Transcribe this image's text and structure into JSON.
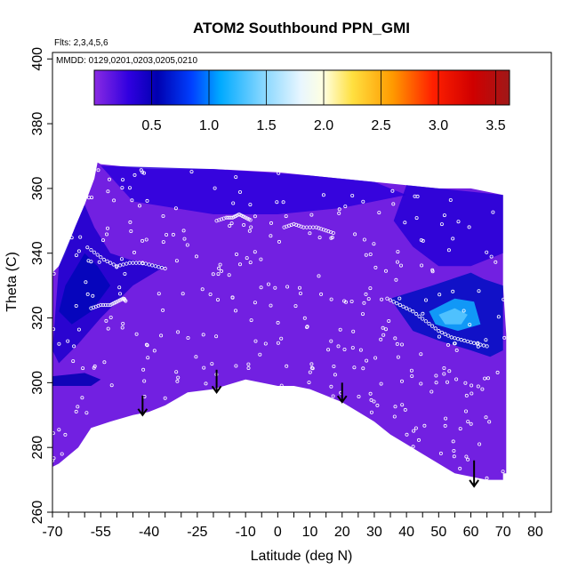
{
  "chart_data": {
    "type": "heatmap",
    "title": "ATOM2 Southbound PPN_GMI",
    "subtitle_flights": "Flts: 2,3,4,5,6",
    "subtitle_dates": "MMDD: 0129,0201,0203,0205,0210",
    "xlabel": "Latitude (deg N)",
    "ylabel": "Theta (C)",
    "xlim": [
      -70,
      85
    ],
    "ylim": [
      260,
      402
    ],
    "x_ticks": [
      -70,
      -55,
      -40,
      -25,
      -10,
      0,
      10,
      20,
      30,
      40,
      50,
      60,
      70,
      80
    ],
    "x_tick_labels": [
      "-70",
      "-55",
      "-40",
      "-25",
      "-10",
      "0",
      "10",
      "20",
      "30",
      "40",
      "50",
      "60",
      "70",
      "80"
    ],
    "x_minor_ticks": [
      -65,
      -60,
      -50,
      -45,
      -35,
      -30,
      -20,
      -15,
      -5,
      5,
      15,
      25,
      35,
      45,
      55,
      65,
      75
    ],
    "y_ticks": [
      260,
      280,
      300,
      320,
      340,
      360,
      380,
      400
    ],
    "y_tick_labels": [
      "260",
      "280",
      "300",
      "320",
      "340",
      "360",
      "380",
      "400"
    ],
    "colorbar": {
      "range": [
        0,
        3.62
      ],
      "ticks": [
        0.5,
        1.0,
        1.5,
        2.0,
        2.5,
        3.0,
        3.5
      ],
      "tick_labels": [
        "0.5",
        "1.0",
        "1.5",
        "2.0",
        "2.5",
        "3.0",
        "3.5"
      ],
      "stops": [
        {
          "v": 0.0,
          "c": "#8a2be2"
        },
        {
          "v": 0.3,
          "c": "#3000e0"
        },
        {
          "v": 0.55,
          "c": "#0000b0"
        },
        {
          "v": 0.85,
          "c": "#0040ff"
        },
        {
          "v": 1.1,
          "c": "#00aaff"
        },
        {
          "v": 1.45,
          "c": "#7fd4ff"
        },
        {
          "v": 1.8,
          "c": "#e8f6ff"
        },
        {
          "v": 2.0,
          "c": "#ffffe0"
        },
        {
          "v": 2.25,
          "c": "#ffe040"
        },
        {
          "v": 2.6,
          "c": "#ff9a00"
        },
        {
          "v": 2.95,
          "c": "#ff2000"
        },
        {
          "v": 3.3,
          "c": "#d00000"
        },
        {
          "v": 3.62,
          "c": "#a01818"
        }
      ]
    },
    "field_background_value": 0.08,
    "data_outline": [
      [
        -70,
        274
      ],
      [
        -68,
        275
      ],
      [
        -62,
        280
      ],
      [
        -58,
        286
      ],
      [
        -52,
        288
      ],
      [
        -45,
        290
      ],
      [
        -40,
        291
      ],
      [
        -35,
        293
      ],
      [
        -28,
        297
      ],
      [
        -20,
        298
      ],
      [
        -10,
        301
      ],
      [
        -5,
        300
      ],
      [
        0,
        299
      ],
      [
        5,
        299
      ],
      [
        10,
        298
      ],
      [
        15,
        296
      ],
      [
        20,
        294
      ],
      [
        25,
        291
      ],
      [
        30,
        288
      ],
      [
        35,
        284
      ],
      [
        40,
        281
      ],
      [
        45,
        278
      ],
      [
        50,
        275
      ],
      [
        55,
        272
      ],
      [
        60,
        271
      ],
      [
        65,
        270
      ],
      [
        70,
        270
      ],
      [
        70,
        272
      ],
      [
        71,
        272
      ],
      [
        71,
        315
      ],
      [
        70,
        330
      ],
      [
        70,
        358
      ],
      [
        60,
        360
      ],
      [
        50,
        360
      ],
      [
        40,
        361
      ],
      [
        30,
        362
      ],
      [
        20,
        363
      ],
      [
        10,
        364
      ],
      [
        0,
        365
      ],
      [
        -20,
        366
      ],
      [
        -40,
        366
      ],
      [
        -55,
        367.5
      ],
      [
        -56,
        368
      ],
      [
        -57,
        363
      ],
      [
        -60,
        355
      ],
      [
        -63,
        348
      ],
      [
        -66,
        340
      ],
      [
        -68,
        336
      ],
      [
        -70,
        334
      ]
    ],
    "features": [
      {
        "label": "sh_dark_lobe",
        "value": 0.4,
        "points": [
          [
            -68,
            336
          ],
          [
            -60,
            355
          ],
          [
            -57,
            348
          ],
          [
            -52,
            340
          ],
          [
            -46,
            338
          ],
          [
            -40,
            337
          ],
          [
            -35,
            336
          ],
          [
            -45,
            330
          ],
          [
            -55,
            320
          ],
          [
            -62,
            312
          ],
          [
            -68,
            306
          ],
          [
            -70,
            310
          ]
        ]
      },
      {
        "label": "sh_dark_core",
        "value": 0.58,
        "points": [
          [
            -66,
            330
          ],
          [
            -60,
            340
          ],
          [
            -56,
            336
          ],
          [
            -52,
            330
          ],
          [
            -58,
            322
          ],
          [
            -64,
            318
          ],
          [
            -68,
            322
          ]
        ]
      },
      {
        "label": "sh_low_band",
        "value": 0.55,
        "points": [
          [
            -70,
            302
          ],
          [
            -60,
            303
          ],
          [
            -55,
            301
          ],
          [
            -58,
            299
          ],
          [
            -65,
            299
          ],
          [
            -70,
            299
          ]
        ]
      },
      {
        "label": "sh_high_band",
        "value": 0.32,
        "points": [
          [
            -55,
            367
          ],
          [
            -20,
            366
          ],
          [
            10,
            364
          ],
          [
            30,
            362
          ],
          [
            40,
            358
          ],
          [
            20,
            354
          ],
          [
            0,
            352
          ],
          [
            -20,
            352
          ],
          [
            -45,
            356
          ]
        ]
      },
      {
        "label": "nh_dark_upper",
        "value": 0.35,
        "points": [
          [
            40,
            361
          ],
          [
            70,
            358
          ],
          [
            70,
            340
          ],
          [
            60,
            336
          ],
          [
            50,
            336
          ],
          [
            42,
            342
          ],
          [
            36,
            350
          ]
        ]
      },
      {
        "label": "nh_wedge",
        "value": 0.62,
        "points": [
          [
            35,
            326
          ],
          [
            48,
            330
          ],
          [
            60,
            334
          ],
          [
            64,
            332
          ],
          [
            70,
            330
          ],
          [
            70,
            310
          ],
          [
            66,
            308
          ],
          [
            60,
            310
          ],
          [
            50,
            313
          ],
          [
            42,
            316
          ]
        ]
      },
      {
        "label": "nh_wedge_core",
        "value": 1.15,
        "points": [
          [
            47,
            322
          ],
          [
            55,
            326
          ],
          [
            61,
            325
          ],
          [
            63,
            318
          ],
          [
            56,
            316
          ],
          [
            49,
            318
          ]
        ]
      },
      {
        "label": "nh_wedge_hot",
        "value": 1.35,
        "points": [
          [
            50,
            321
          ],
          [
            55,
            323
          ],
          [
            59,
            321
          ],
          [
            57,
            318
          ],
          [
            52,
            318
          ]
        ]
      }
    ],
    "arrows": [
      {
        "x": -42,
        "y_top": 296,
        "y_tip": 290
      },
      {
        "x": -19,
        "y_top": 304,
        "y_tip": 297
      },
      {
        "x": 20,
        "y_top": 300,
        "y_tip": 294
      },
      {
        "x": 61,
        "y_top": 276,
        "y_tip": 268
      }
    ],
    "flight_tracks": [
      {
        "label": "track_sh_1",
        "points": [
          [
            -58,
            341
          ],
          [
            -54,
            338
          ],
          [
            -50,
            336
          ],
          [
            -46,
            337
          ],
          [
            -42,
            337
          ],
          [
            -38,
            336
          ],
          [
            -34,
            335
          ]
        ]
      },
      {
        "label": "track_sh_2",
        "points": [
          [
            -58,
            323
          ],
          [
            -55,
            324
          ],
          [
            -52,
            324
          ],
          [
            -50,
            325
          ],
          [
            -48,
            326
          ],
          [
            -47,
            325
          ]
        ]
      },
      {
        "label": "track_peak",
        "points": [
          [
            -19,
            350
          ],
          [
            -16,
            351
          ],
          [
            -14,
            351
          ],
          [
            -12,
            352
          ],
          [
            -10,
            351
          ],
          [
            -8,
            350
          ]
        ]
      },
      {
        "label": "track_nh_1",
        "points": [
          [
            2,
            348
          ],
          [
            5,
            349
          ],
          [
            8,
            348
          ],
          [
            12,
            348
          ],
          [
            15,
            347
          ],
          [
            18,
            346
          ]
        ]
      },
      {
        "label": "track_nh_2",
        "points": [
          [
            34,
            326
          ],
          [
            38,
            324
          ],
          [
            42,
            322
          ],
          [
            46,
            319
          ],
          [
            50,
            316
          ],
          [
            54,
            314
          ],
          [
            58,
            313
          ],
          [
            62,
            312
          ],
          [
            66,
            311
          ]
        ]
      }
    ],
    "scatter_seed": 7,
    "scatter_count": 330
  }
}
